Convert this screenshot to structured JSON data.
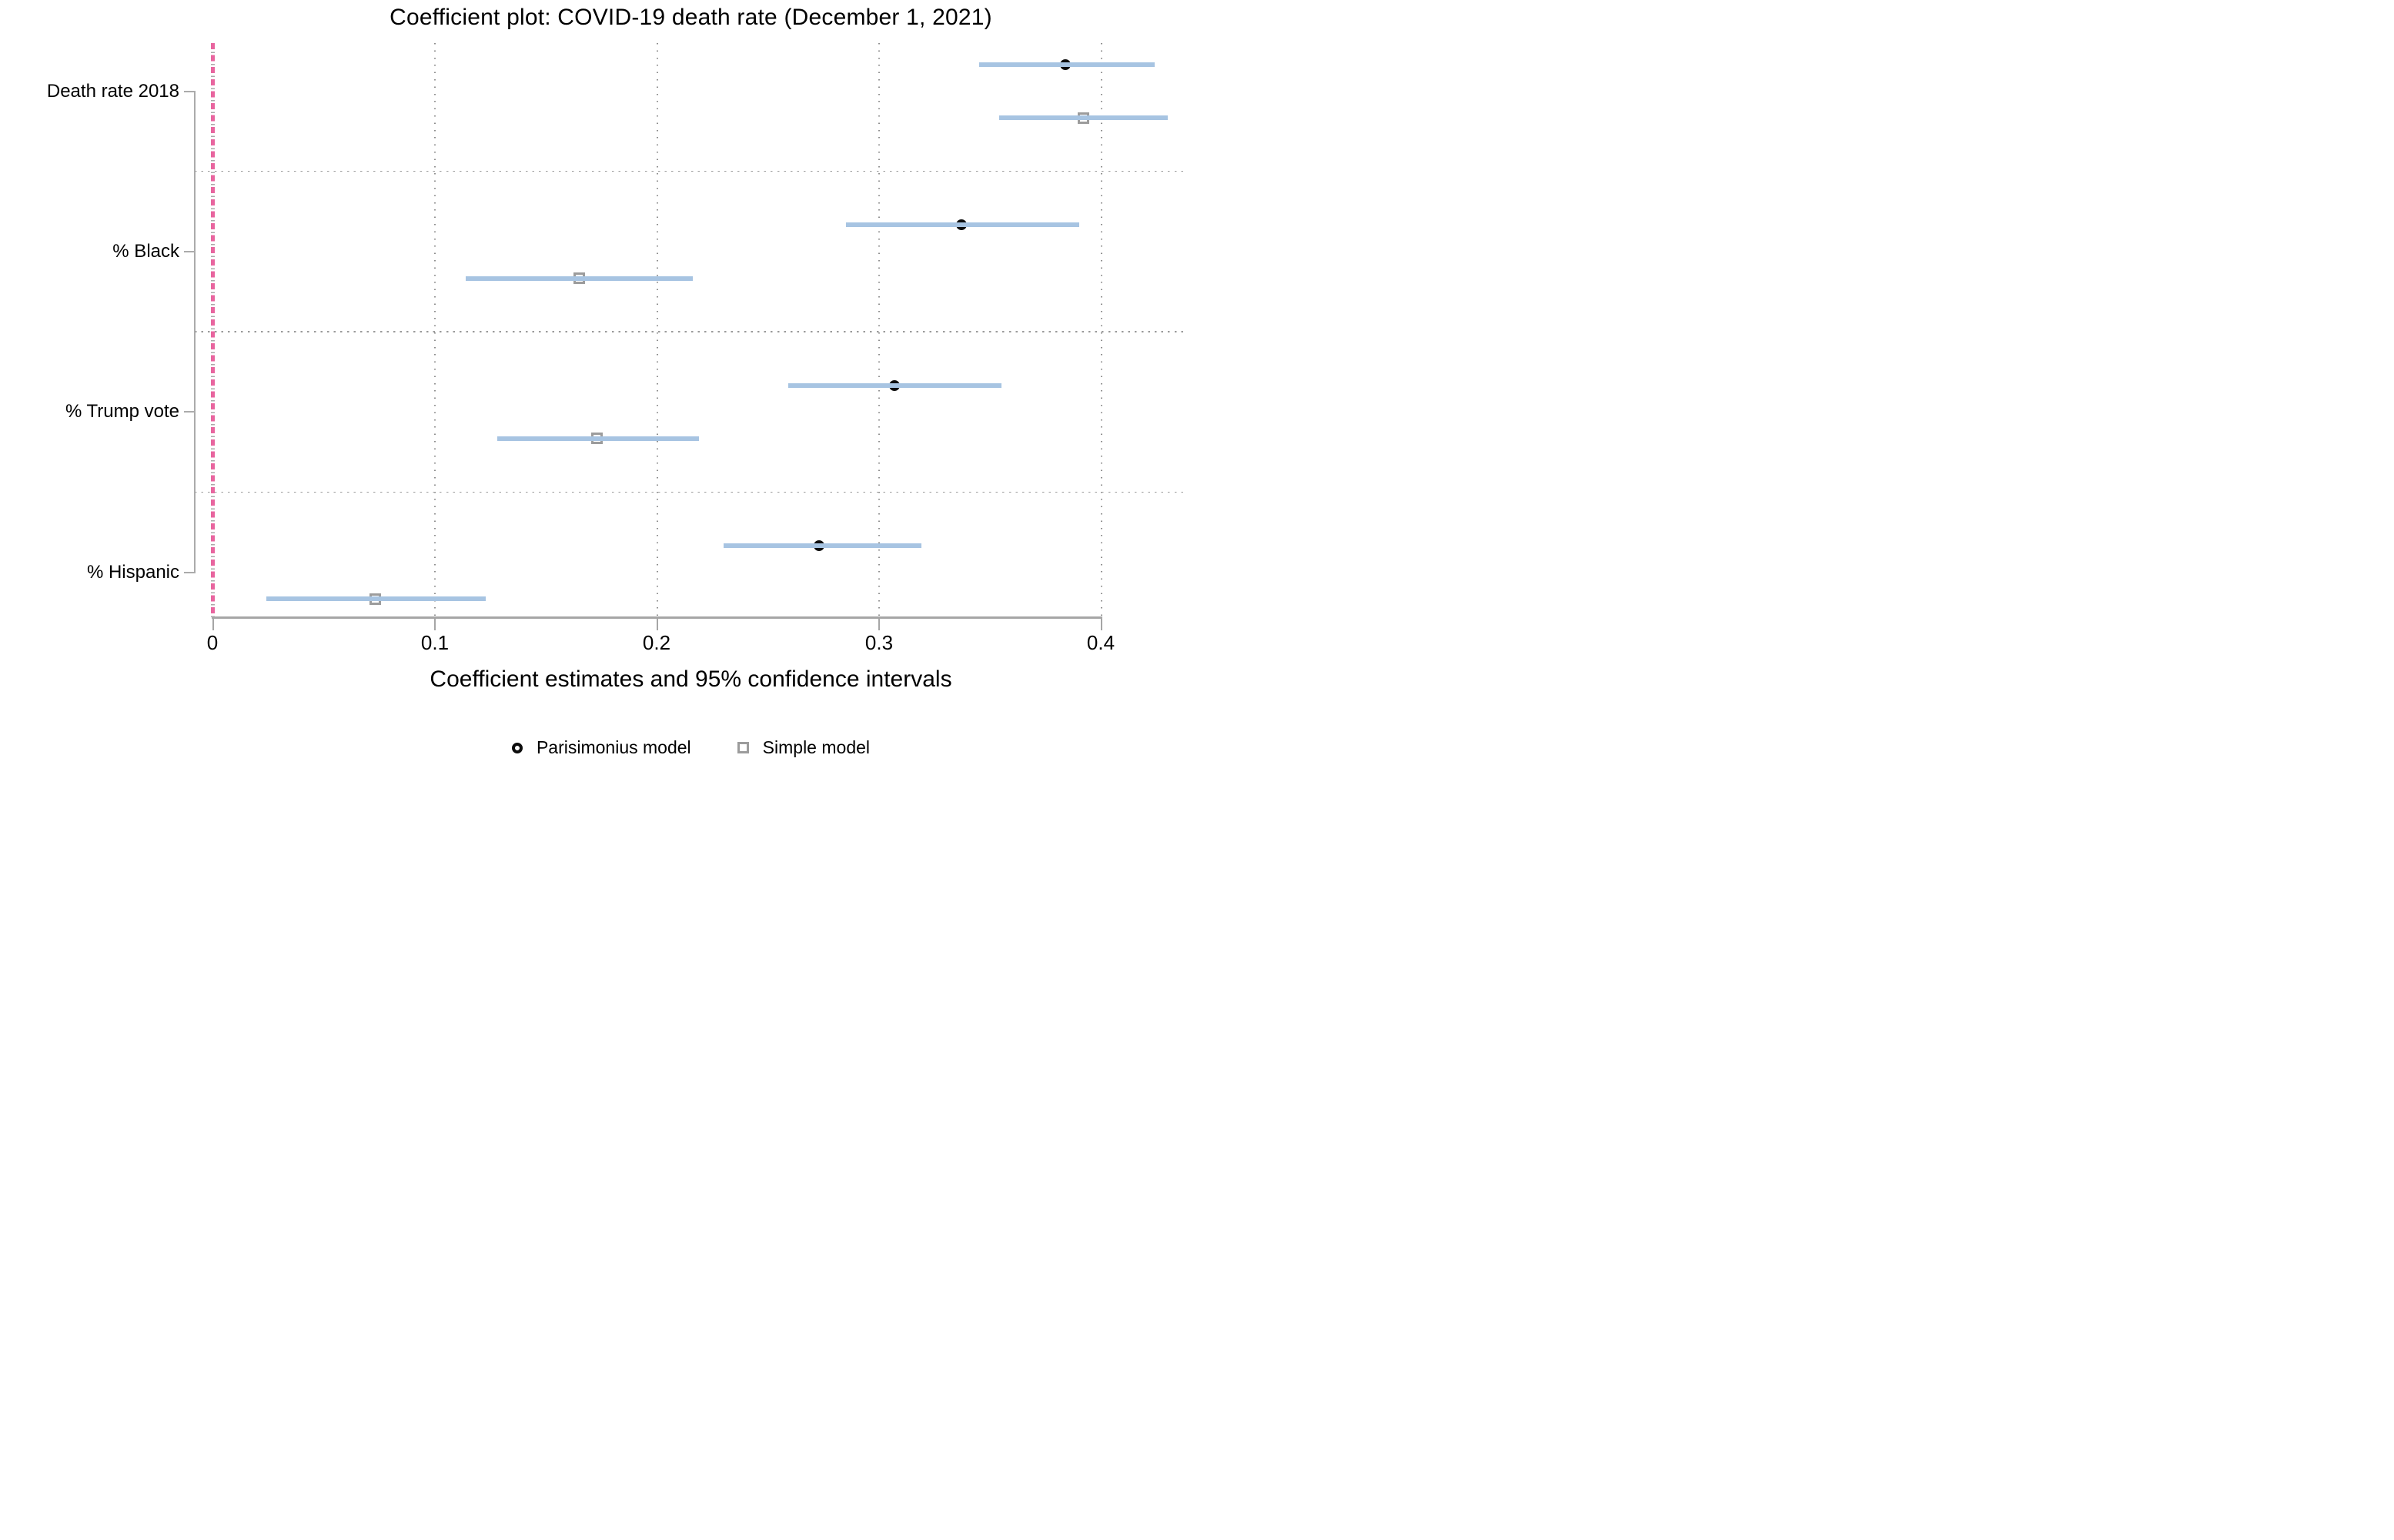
{
  "chart_data": {
    "type": "scatter",
    "subtype": "coefficient-dot-plot-with-95ci",
    "title": "Coefficient plot: COVID-19 death rate (December 1, 2021)",
    "xlabel": "Coefficient estimates and 95% confidence intervals",
    "categories": [
      "Death rate 2018",
      "% Black",
      "% Trump vote",
      "% Hispanic"
    ],
    "x_ticks": [
      0,
      0.1,
      0.2,
      0.3,
      0.4
    ],
    "x_tick_labels": [
      "0",
      "0.1",
      "0.2",
      "0.3",
      "0.4"
    ],
    "xlim": [
      -0.008,
      0.438
    ],
    "reference_line_x": 0,
    "grid": "dotted vertical gridlines at x ticks; dotted horizontal separators between categories",
    "legend_position": "bottom-center",
    "series": [
      {
        "name": "Parisimonius model",
        "marker": "circle",
        "marker_color": "#0d0d0d",
        "estimates": [
          0.384,
          0.337,
          0.307,
          0.273
        ],
        "ci_low": [
          0.345,
          0.285,
          0.259,
          0.23
        ],
        "ci_high": [
          0.424,
          0.39,
          0.355,
          0.319
        ]
      },
      {
        "name": "Simple model",
        "marker": "square",
        "marker_color": "#9c9c9c",
        "estimates": [
          0.392,
          0.165,
          0.173,
          0.073
        ],
        "ci_low": [
          0.354,
          0.114,
          0.128,
          0.024
        ],
        "ci_high": [
          0.43,
          0.216,
          0.219,
          0.123
        ]
      }
    ],
    "colors": {
      "ci_line": "#a7c4e2",
      "reference_line": "#e8659f",
      "axis": "#a6a6a6",
      "grid_dots": "#8f8f8f"
    }
  }
}
